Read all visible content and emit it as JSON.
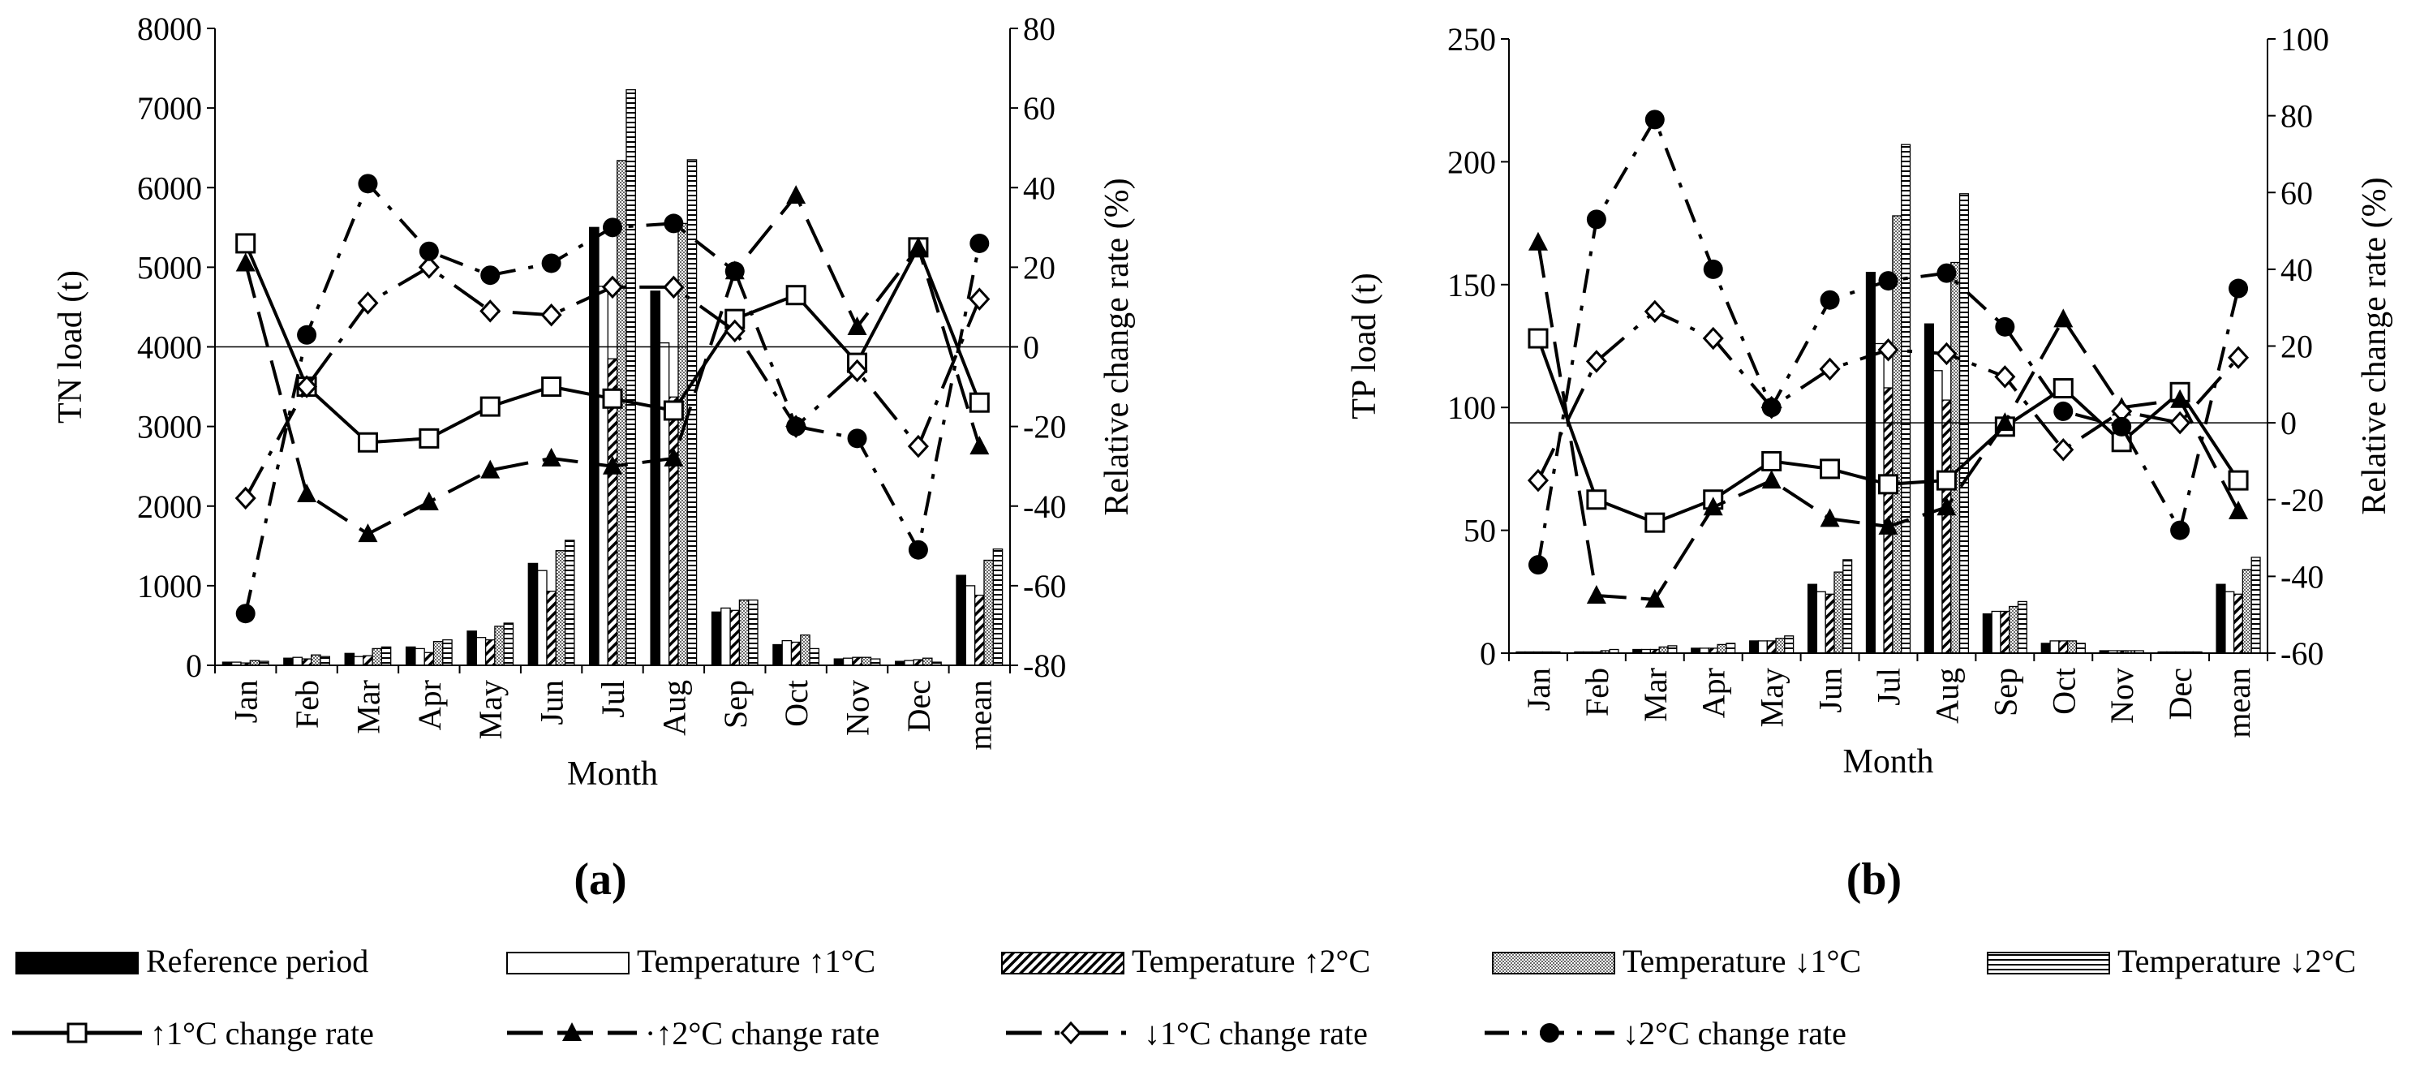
{
  "chart_data": [
    {
      "type": "bar",
      "panel_label": "(a)",
      "categories": [
        "Jan",
        "Feb",
        "Mar",
        "Apr",
        "May",
        "Jun",
        "Jul",
        "Aug",
        "Sep",
        "Oct",
        "Nov",
        "Dec",
        "mean"
      ],
      "xlabel": "Month",
      "ylabel": "TN load (t)",
      "y2label": "Relative change rate (%)",
      "ylim": [
        0,
        8000
      ],
      "yticks": [
        0,
        1000,
        2000,
        3000,
        4000,
        5000,
        6000,
        7000,
        8000
      ],
      "y2lim": [
        -80,
        80
      ],
      "y2ticks": [
        -80,
        -60,
        -40,
        -20,
        0,
        20,
        40,
        60,
        80
      ],
      "bar_series": [
        {
          "name": "Reference period",
          "values": [
            40,
            90,
            150,
            230,
            430,
            1280,
            5500,
            4700,
            670,
            260,
            80,
            50,
            1130
          ]
        },
        {
          "name": "Temperature ↑1°C",
          "values": [
            40,
            100,
            110,
            210,
            350,
            1190,
            4760,
            4050,
            720,
            310,
            90,
            60,
            1000
          ]
        },
        {
          "name": "Temperature ↑2°C",
          "values": [
            30,
            80,
            120,
            160,
            320,
            930,
            3850,
            3370,
            690,
            290,
            100,
            70,
            880
          ]
        },
        {
          "name": "Temperature ↓1°C",
          "values": [
            60,
            130,
            210,
            300,
            490,
            1440,
            6340,
            5550,
            820,
            380,
            100,
            90,
            1320
          ]
        },
        {
          "name": "Temperature ↓2°C",
          "values": [
            50,
            110,
            230,
            320,
            530,
            1570,
            7230,
            6350,
            820,
            210,
            80,
            40,
            1460
          ]
        }
      ],
      "line_series": [
        {
          "name": "↑1°C change rate",
          "values": [
            26,
            -10,
            -24,
            -23,
            -15,
            -10,
            -13,
            -16,
            7,
            13,
            -4,
            25,
            -14
          ]
        },
        {
          "name": "·↑2°C change rate",
          "values": [
            21,
            -37,
            -47,
            -39,
            -31,
            -28,
            -30,
            -28,
            19,
            38,
            5,
            25,
            -25
          ]
        },
        {
          "name": "↓1°C change rate",
          "values": [
            -38,
            -10,
            11,
            20,
            9,
            8,
            15,
            15,
            4,
            -20,
            -6,
            -25,
            12
          ]
        },
        {
          "name": "↓2°C change rate",
          "values": [
            -67,
            3,
            41,
            24,
            18,
            21,
            30,
            31,
            19,
            -20,
            -23,
            -51,
            26
          ]
        }
      ]
    },
    {
      "type": "bar",
      "panel_label": "(b)",
      "categories": [
        "Jan",
        "Feb",
        "Mar",
        "Apr",
        "May",
        "Jun",
        "Jul",
        "Aug",
        "Sep",
        "Oct",
        "Nov",
        "Dec",
        "mean"
      ],
      "xlabel": "Month",
      "ylabel": "TP load (t)",
      "y2label": "Relative change rate (%)",
      "ylim": [
        0,
        250
      ],
      "yticks": [
        0,
        50,
        100,
        150,
        200,
        250
      ],
      "y2lim": [
        -60,
        100
      ],
      "y2ticks": [
        -60,
        -40,
        -20,
        0,
        20,
        40,
        60,
        80,
        100
      ],
      "bar_series": [
        {
          "name": "Reference period",
          "values": [
            0.5,
            0.5,
            1.5,
            2,
            5,
            28,
            155,
            134,
            16,
            4,
            1,
            0.5,
            28
          ]
        },
        {
          "name": "Temperature ↑1°C",
          "values": [
            0.5,
            0.5,
            1.5,
            2,
            5,
            25,
            126,
            115,
            17,
            5,
            1,
            0.5,
            25
          ]
        },
        {
          "name": "Temperature ↑2°C",
          "values": [
            0.5,
            0.5,
            1.5,
            2,
            5,
            24,
            108,
            103,
            17,
            5,
            1,
            0.5,
            24
          ]
        },
        {
          "name": "Temperature ↓1°C",
          "values": [
            0.5,
            1,
            2.5,
            3.5,
            6,
            33,
            178,
            159,
            19,
            5,
            1,
            0.5,
            34
          ]
        },
        {
          "name": "Temperature ↓2°C",
          "values": [
            0.5,
            1.5,
            3,
            4,
            7,
            38,
            207,
            187,
            21,
            4,
            1,
            0.5,
            39
          ]
        }
      ],
      "line_series": [
        {
          "name": "↑1°C change rate",
          "values": [
            22,
            -20,
            -26,
            -20,
            -10,
            -12,
            -16,
            -15,
            -1,
            9,
            -5,
            8,
            -15
          ]
        },
        {
          "name": "·↑2°C change rate",
          "values": [
            47,
            -45,
            -46,
            -22,
            -15,
            -25,
            -27,
            -22,
            0,
            27,
            4,
            6,
            -23
          ]
        },
        {
          "name": "↓1°C change rate",
          "values": [
            -15,
            16,
            29,
            22,
            4,
            14,
            19,
            18,
            12,
            -7,
            3,
            0,
            17
          ]
        },
        {
          "name": "↓2°C change rate",
          "values": [
            -37,
            53,
            79,
            40,
            4,
            32,
            37,
            39,
            25,
            3,
            -1,
            -28,
            35
          ]
        }
      ]
    }
  ]
}
